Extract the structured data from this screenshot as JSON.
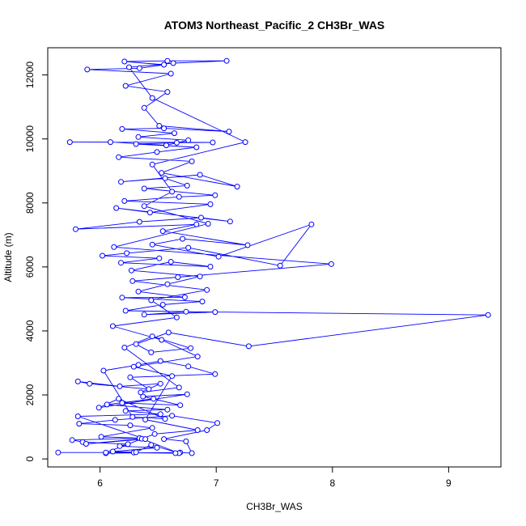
{
  "chart_data": {
    "type": "line",
    "title": "ATOM3 Northeast_Pacific_2 CH3Br_WAS",
    "xlabel": "CH3Br_WAS",
    "ylabel": "Altitude (m)",
    "xlim": [
      5.55,
      9.45
    ],
    "ylim": [
      -250,
      12850
    ],
    "x_ticks": [
      6,
      7,
      8,
      9
    ],
    "y_ticks": [
      0,
      2000,
      4000,
      6000,
      8000,
      10000,
      12000
    ],
    "x_tick_labels": [
      "6",
      "7",
      "8",
      "9"
    ],
    "y_tick_labels": [
      "0",
      "2000",
      "4000",
      "6000",
      "8000",
      "10000",
      "12000"
    ],
    "grid": false,
    "legend": "none",
    "series": [
      {
        "color": "#0000ff",
        "marker": "open-circle",
        "points": [
          [
            5.64,
            200
          ],
          [
            6.29,
            200
          ],
          [
            6.05,
            180
          ],
          [
            6.69,
            200
          ],
          [
            6.79,
            180
          ],
          [
            6.74,
            550
          ],
          [
            6.55,
            620
          ],
          [
            6.92,
            900
          ],
          [
            7.01,
            1120
          ],
          [
            6.62,
            1350
          ],
          [
            6.13,
            1220
          ],
          [
            5.82,
            1100
          ],
          [
            6.26,
            1050
          ],
          [
            6.45,
            970
          ],
          [
            6.01,
            690
          ],
          [
            6.34,
            650
          ],
          [
            5.76,
            590
          ],
          [
            5.85,
            530
          ],
          [
            6.24,
            460
          ],
          [
            6.17,
            400
          ],
          [
            6.49,
            350
          ],
          [
            6.11,
            230
          ],
          [
            6.31,
            210
          ],
          [
            6.44,
            440
          ],
          [
            6.68,
            180
          ],
          [
            6.36,
            630
          ],
          [
            5.88,
            470
          ],
          [
            6.39,
            620
          ],
          [
            5.81,
            1330
          ],
          [
            6.52,
            1400
          ],
          [
            6.22,
            1500
          ],
          [
            6.58,
            1540
          ],
          [
            6.06,
            1700
          ],
          [
            6.46,
            1880
          ],
          [
            6.19,
            1750
          ],
          [
            6.69,
            1680
          ],
          [
            6.37,
            1950
          ],
          [
            6.75,
            2020
          ],
          [
            5.99,
            1600
          ],
          [
            6.16,
            1880
          ],
          [
            6.56,
            1250
          ],
          [
            6.28,
            1310
          ],
          [
            6.03,
            2760
          ],
          [
            6.33,
            2940
          ],
          [
            6.52,
            3060
          ],
          [
            6.76,
            2890
          ],
          [
            6.99,
            2650
          ],
          [
            6.26,
            2550
          ],
          [
            6.42,
            2180
          ],
          [
            5.91,
            2350
          ],
          [
            5.81,
            2420
          ],
          [
            6.17,
            2270
          ],
          [
            6.52,
            2350
          ],
          [
            6.35,
            2080
          ],
          [
            6.68,
            2230
          ],
          [
            6.21,
            3480
          ],
          [
            6.45,
            3830
          ],
          [
            6.78,
            3460
          ],
          [
            6.44,
            3330
          ],
          [
            6.31,
            3590
          ],
          [
            6.59,
            3950
          ],
          [
            7.28,
            3520
          ],
          [
            9.34,
            4500
          ],
          [
            6.74,
            4600
          ],
          [
            6.38,
            4510
          ],
          [
            6.99,
            4590
          ],
          [
            6.22,
            4630
          ],
          [
            6.54,
            4820
          ],
          [
            6.88,
            4920
          ],
          [
            6.19,
            5040
          ],
          [
            6.73,
            5050
          ],
          [
            6.33,
            5230
          ],
          [
            6.58,
            5460
          ],
          [
            6.86,
            5700
          ],
          [
            6.27,
            5890
          ],
          [
            6.61,
            6160
          ],
          [
            6.95,
            6010
          ],
          [
            6.18,
            6130
          ],
          [
            6.51,
            6270
          ],
          [
            6.02,
            6350
          ],
          [
            6.23,
            6430
          ],
          [
            6.76,
            6600
          ],
          [
            7.55,
            6040
          ],
          [
            7.82,
            7330
          ],
          [
            7.02,
            6320
          ],
          [
            6.45,
            6700
          ],
          [
            6.71,
            6880
          ],
          [
            7.27,
            6680
          ],
          [
            6.54,
            7120
          ],
          [
            6.83,
            7330
          ],
          [
            5.79,
            7180
          ],
          [
            6.34,
            7410
          ],
          [
            6.87,
            7540
          ],
          [
            7.12,
            7420
          ],
          [
            6.14,
            7840
          ],
          [
            6.43,
            7700
          ],
          [
            6.95,
            7960
          ],
          [
            6.21,
            8060
          ],
          [
            6.68,
            8190
          ],
          [
            6.99,
            8240
          ],
          [
            6.38,
            8450
          ],
          [
            6.75,
            8540
          ],
          [
            6.56,
            8770
          ],
          [
            6.18,
            8660
          ],
          [
            6.86,
            8880
          ],
          [
            7.18,
            8510
          ],
          [
            6.53,
            8940
          ],
          [
            6.79,
            9300
          ],
          [
            6.16,
            9430
          ],
          [
            6.49,
            9590
          ],
          [
            6.83,
            9740
          ],
          [
            6.31,
            9840
          ],
          [
            6.66,
            9880
          ],
          [
            6.97,
            9890
          ],
          [
            5.74,
            9900
          ],
          [
            6.09,
            9900
          ],
          [
            6.57,
            9800
          ],
          [
            6.76,
            9960
          ],
          [
            6.33,
            10060
          ],
          [
            6.64,
            10180
          ],
          [
            6.19,
            10310
          ],
          [
            6.55,
            10330
          ],
          [
            7.11,
            10230
          ],
          [
            6.51,
            10410
          ],
          [
            6.38,
            10970
          ],
          [
            6.58,
            11470
          ],
          [
            6.22,
            11660
          ],
          [
            6.61,
            12040
          ],
          [
            5.89,
            12170
          ],
          [
            6.34,
            12210
          ],
          [
            6.55,
            12320
          ],
          [
            6.21,
            12420
          ],
          [
            6.58,
            12440
          ],
          [
            7.09,
            12440
          ],
          [
            6.63,
            12370
          ],
          [
            6.25,
            12240
          ],
          [
            6.45,
            11280
          ],
          [
            7.25,
            9900
          ],
          [
            6.45,
            9200
          ],
          [
            6.62,
            8350
          ],
          [
            6.38,
            7900
          ],
          [
            6.93,
            7350
          ],
          [
            6.12,
            6620
          ],
          [
            7.99,
            6090
          ],
          [
            6.67,
            5680
          ],
          [
            6.28,
            5560
          ],
          [
            6.92,
            5280
          ],
          [
            6.44,
            4960
          ],
          [
            6.66,
            4420
          ],
          [
            6.11,
            4150
          ],
          [
            6.53,
            3720
          ],
          [
            6.84,
            3200
          ],
          [
            6.29,
            2880
          ],
          [
            6.62,
            2590
          ],
          [
            6.39,
            1230
          ],
          [
            6.84,
            900
          ],
          [
            6.47,
            780
          ],
          [
            6.05,
            200
          ],
          [
            6.65,
            180
          ]
        ]
      }
    ]
  }
}
